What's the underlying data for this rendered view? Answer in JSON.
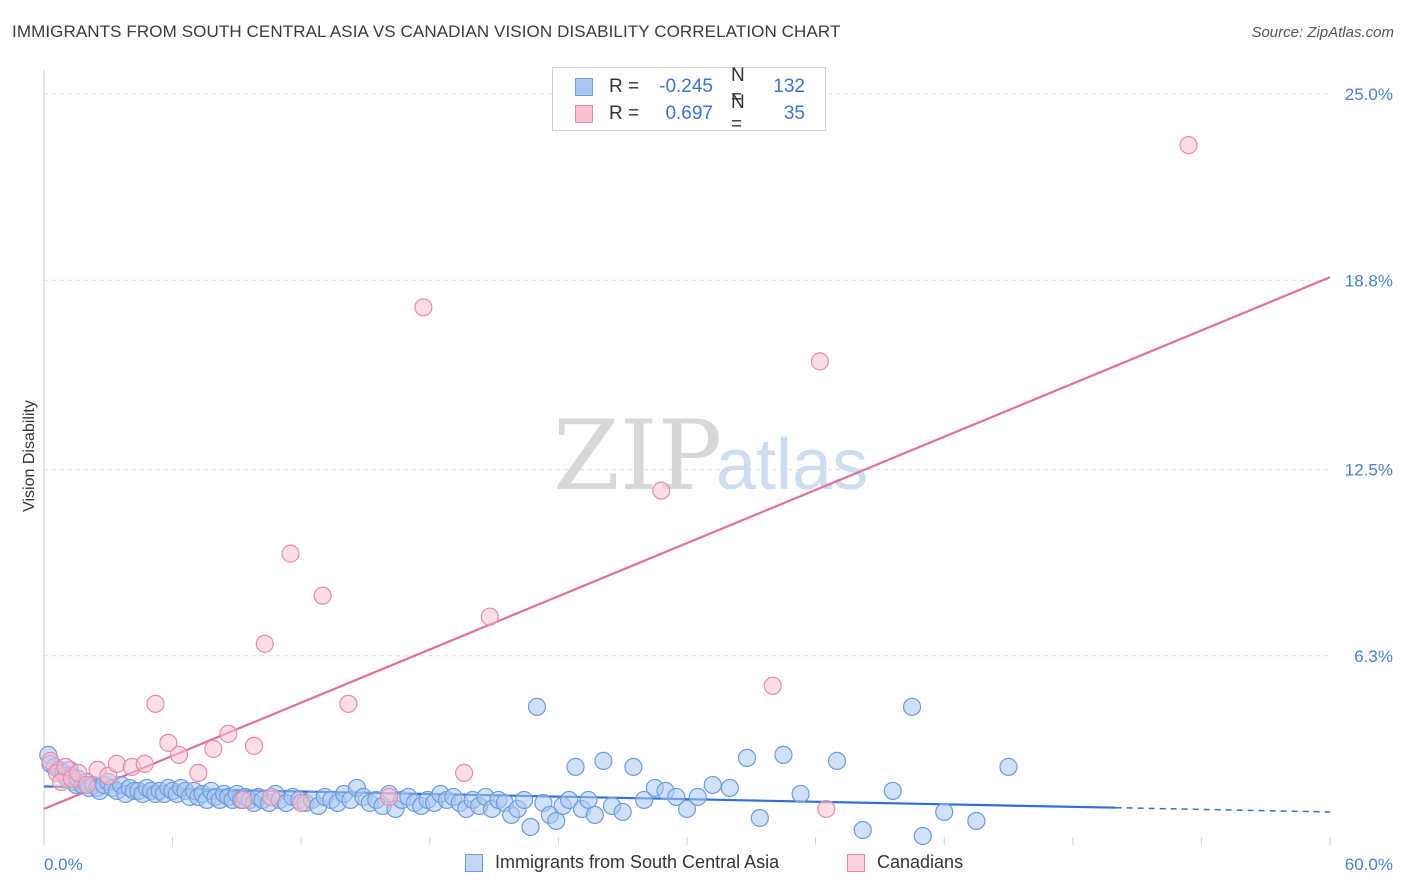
{
  "title": "IMMIGRANTS FROM SOUTH CENTRAL ASIA VS CANADIAN VISION DISABILITY CORRELATION CHART",
  "source": "Source: ZipAtlas.com",
  "watermark": {
    "zip": "ZIP",
    "atlas": "atlas"
  },
  "legend": {
    "rows": [
      {
        "r_label": "R =",
        "r_value": "-0.245",
        "n_label": "N =",
        "n_value": "132",
        "color": "#a9c6ef",
        "border": "#6d9be0"
      },
      {
        "r_label": "R =",
        "r_value": "0.697",
        "n_label": "N =",
        "n_value": "35",
        "color": "#f7c1d2",
        "border": "#e88aa8"
      }
    ]
  },
  "bottom_legend": [
    {
      "label": "Immigrants from South Central Asia",
      "color": "#a9c6ef",
      "border": "#6d9be0"
    },
    {
      "label": "Canadians",
      "color": "#f7c1d2",
      "border": "#e88aa8"
    }
  ],
  "chart_data": {
    "type": "scatter",
    "title": "IMMIGRANTS FROM SOUTH CENTRAL ASIA VS CANADIAN VISION DISABILITY CORRELATION CHART",
    "xlabel": "",
    "ylabel": "Vision Disability",
    "xlim": [
      0,
      60
    ],
    "ylim": [
      0,
      25.8
    ],
    "x_tick_labels": [
      "0.0%",
      "60.0%"
    ],
    "y_ticks": [
      6.3,
      12.5,
      18.8,
      25.0
    ],
    "y_tick_labels": [
      "6.3%",
      "12.5%",
      "18.8%",
      "25.0%"
    ],
    "grid": true,
    "series": [
      {
        "name": "Immigrants from South Central Asia",
        "color": "#6d9be0",
        "fill": "#a9c6ef",
        "trend": {
          "x0": 0,
          "y0": 1.95,
          "x1": 60,
          "y1": 1.1,
          "solid_until": 50
        },
        "points": [
          [
            0.2,
            3.0
          ],
          [
            0.3,
            2.7
          ],
          [
            0.5,
            2.6
          ],
          [
            0.7,
            2.5
          ],
          [
            0.9,
            2.4
          ],
          [
            1.0,
            2.3
          ],
          [
            1.1,
            2.2
          ],
          [
            1.2,
            2.5
          ],
          [
            1.3,
            2.3
          ],
          [
            1.4,
            2.1
          ],
          [
            1.5,
            2.0
          ],
          [
            1.6,
            2.2
          ],
          [
            1.8,
            2.0
          ],
          [
            2.0,
            2.1
          ],
          [
            2.1,
            1.9
          ],
          [
            2.3,
            2.0
          ],
          [
            2.5,
            1.9
          ],
          [
            2.6,
            1.8
          ],
          [
            2.8,
            2.0
          ],
          [
            3.0,
            2.1
          ],
          [
            3.2,
            1.9
          ],
          [
            3.4,
            1.8
          ],
          [
            3.6,
            2.0
          ],
          [
            3.8,
            1.7
          ],
          [
            4.0,
            1.9
          ],
          [
            4.2,
            1.8
          ],
          [
            4.4,
            1.8
          ],
          [
            4.6,
            1.7
          ],
          [
            4.8,
            1.9
          ],
          [
            5.0,
            1.8
          ],
          [
            5.2,
            1.7
          ],
          [
            5.4,
            1.8
          ],
          [
            5.6,
            1.7
          ],
          [
            5.8,
            1.9
          ],
          [
            6.0,
            1.8
          ],
          [
            6.2,
            1.7
          ],
          [
            6.4,
            1.9
          ],
          [
            6.6,
            1.8
          ],
          [
            6.8,
            1.6
          ],
          [
            7.0,
            1.8
          ],
          [
            7.2,
            1.6
          ],
          [
            7.4,
            1.7
          ],
          [
            7.6,
            1.5
          ],
          [
            7.8,
            1.8
          ],
          [
            8.0,
            1.6
          ],
          [
            8.2,
            1.5
          ],
          [
            8.4,
            1.7
          ],
          [
            8.6,
            1.6
          ],
          [
            8.8,
            1.5
          ],
          [
            9.0,
            1.7
          ],
          [
            9.2,
            1.5
          ],
          [
            9.4,
            1.6
          ],
          [
            9.6,
            1.5
          ],
          [
            9.8,
            1.4
          ],
          [
            10.0,
            1.6
          ],
          [
            10.2,
            1.5
          ],
          [
            10.5,
            1.4
          ],
          [
            10.8,
            1.7
          ],
          [
            11.0,
            1.5
          ],
          [
            11.3,
            1.4
          ],
          [
            11.6,
            1.6
          ],
          [
            11.9,
            1.5
          ],
          [
            12.2,
            1.4
          ],
          [
            12.5,
            1.5
          ],
          [
            12.8,
            1.3
          ],
          [
            13.1,
            1.6
          ],
          [
            13.4,
            1.5
          ],
          [
            13.7,
            1.4
          ],
          [
            14.0,
            1.7
          ],
          [
            14.3,
            1.5
          ],
          [
            14.6,
            1.9
          ],
          [
            14.9,
            1.6
          ],
          [
            15.2,
            1.4
          ],
          [
            15.5,
            1.5
          ],
          [
            15.8,
            1.3
          ],
          [
            16.1,
            1.7
          ],
          [
            16.4,
            1.2
          ],
          [
            16.7,
            1.5
          ],
          [
            17.0,
            1.6
          ],
          [
            17.3,
            1.4
          ],
          [
            17.6,
            1.3
          ],
          [
            17.9,
            1.5
          ],
          [
            18.2,
            1.4
          ],
          [
            18.5,
            1.7
          ],
          [
            18.8,
            1.5
          ],
          [
            19.1,
            1.6
          ],
          [
            19.4,
            1.4
          ],
          [
            19.7,
            1.2
          ],
          [
            20.0,
            1.5
          ],
          [
            20.3,
            1.3
          ],
          [
            20.6,
            1.6
          ],
          [
            20.9,
            1.2
          ],
          [
            21.2,
            1.5
          ],
          [
            21.5,
            1.4
          ],
          [
            21.8,
            1.0
          ],
          [
            22.1,
            1.2
          ],
          [
            22.4,
            1.5
          ],
          [
            22.7,
            0.6
          ],
          [
            23.0,
            4.6
          ],
          [
            23.3,
            1.4
          ],
          [
            23.6,
            1.0
          ],
          [
            23.9,
            0.8
          ],
          [
            24.2,
            1.3
          ],
          [
            24.5,
            1.5
          ],
          [
            24.8,
            2.6
          ],
          [
            25.1,
            1.2
          ],
          [
            25.4,
            1.5
          ],
          [
            25.7,
            1.0
          ],
          [
            26.1,
            2.8
          ],
          [
            26.5,
            1.3
          ],
          [
            27.0,
            1.1
          ],
          [
            27.5,
            2.6
          ],
          [
            28.0,
            1.5
          ],
          [
            28.5,
            1.9
          ],
          [
            29.0,
            1.8
          ],
          [
            29.5,
            1.6
          ],
          [
            30.0,
            1.2
          ],
          [
            30.5,
            1.6
          ],
          [
            31.2,
            2.0
          ],
          [
            32.0,
            1.9
          ],
          [
            32.8,
            2.9
          ],
          [
            33.4,
            0.9
          ],
          [
            34.5,
            3.0
          ],
          [
            35.3,
            1.7
          ],
          [
            37.0,
            2.8
          ],
          [
            38.2,
            0.5
          ],
          [
            39.6,
            1.8
          ],
          [
            40.5,
            4.6
          ],
          [
            41.0,
            0.3
          ],
          [
            42.0,
            1.1
          ],
          [
            43.5,
            0.8
          ],
          [
            45.0,
            2.6
          ]
        ]
      },
      {
        "name": "Canadians",
        "color": "#e88aa8",
        "fill": "#f7c1d2",
        "trend": {
          "x0": 0,
          "y0": 1.2,
          "x1": 60,
          "y1": 18.9
        },
        "points": [
          [
            0.3,
            2.8
          ],
          [
            0.6,
            2.4
          ],
          [
            0.8,
            2.1
          ],
          [
            1.0,
            2.6
          ],
          [
            1.3,
            2.2
          ],
          [
            1.6,
            2.4
          ],
          [
            2.0,
            2.0
          ],
          [
            2.5,
            2.5
          ],
          [
            3.0,
            2.3
          ],
          [
            3.4,
            2.7
          ],
          [
            4.1,
            2.6
          ],
          [
            4.7,
            2.7
          ],
          [
            5.2,
            4.7
          ],
          [
            5.8,
            3.4
          ],
          [
            6.3,
            3.0
          ],
          [
            7.2,
            2.4
          ],
          [
            7.9,
            3.2
          ],
          [
            8.6,
            3.7
          ],
          [
            9.3,
            1.5
          ],
          [
            9.8,
            3.3
          ],
          [
            10.3,
            6.7
          ],
          [
            10.6,
            1.6
          ],
          [
            11.5,
            9.7
          ],
          [
            12.0,
            1.4
          ],
          [
            13.0,
            8.3
          ],
          [
            14.2,
            4.7
          ],
          [
            16.1,
            1.6
          ],
          [
            17.7,
            17.9
          ],
          [
            19.6,
            2.4
          ],
          [
            20.8,
            7.6
          ],
          [
            28.8,
            11.8
          ],
          [
            34.0,
            5.3
          ],
          [
            36.2,
            16.1
          ],
          [
            36.5,
            1.2
          ],
          [
            53.4,
            23.3
          ]
        ]
      }
    ]
  }
}
